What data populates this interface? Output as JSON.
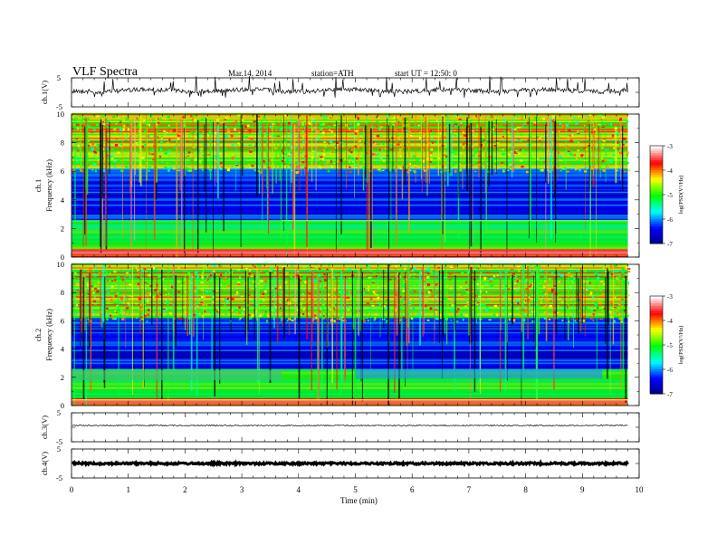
{
  "header": {
    "title": "VLF  Spectra",
    "date": "Mar.14, 2014",
    "station": "station=ATH",
    "start": "start  UT  =   12:50: 0"
  },
  "chart_data": [
    {
      "type": "line",
      "title": "",
      "ylabel": "ch.1(V)",
      "ylim": [
        -5,
        5
      ],
      "ytick_labels": [
        "5",
        "-5"
      ],
      "description_level": 0,
      "note": "noisy waveform near 0 V with spikes"
    },
    {
      "type": "heatmap",
      "ylabel_top": "ch.1",
      "ylabel": "Frequency  (kHz)",
      "ylim": [
        0,
        10
      ],
      "ytick_labels": [
        "0",
        "2",
        "4",
        "6",
        "8",
        "10"
      ],
      "colorbar": {
        "label": "log(PSD(V²/Hz)",
        "range": [
          -7,
          -3
        ],
        "tick_labels": [
          "-3",
          "-4",
          "-5",
          "-6",
          "-7"
        ]
      }
    },
    {
      "type": "heatmap",
      "ylabel_top": "ch.2",
      "ylabel": "Frequency  (kHz)",
      "ylim": [
        0,
        10
      ],
      "ytick_labels": [
        "0",
        "2",
        "4",
        "6",
        "8",
        "10"
      ],
      "colorbar": {
        "label": "log(PSD(V²/Hz)",
        "range": [
          -7,
          -3
        ],
        "tick_labels": [
          "-3",
          "-4",
          "-5",
          "-6",
          "-7"
        ]
      }
    },
    {
      "type": "line",
      "ylabel": "ch.3(V)",
      "ylim": [
        -5,
        5
      ],
      "ytick_labels": [
        "5",
        "-5"
      ]
    },
    {
      "type": "line",
      "ylabel": "ch.4(V)",
      "ylim": [
        -5,
        5
      ],
      "ytick_labels": [
        "5",
        "-5"
      ]
    }
  ],
  "xaxis": {
    "label": "Time  (min)",
    "xlim": [
      0,
      10
    ],
    "tick_labels": [
      "0",
      "1",
      "2",
      "3",
      "4",
      "5",
      "6",
      "7",
      "8",
      "9",
      "10"
    ],
    "data_end_min": 9.8
  },
  "colors": {
    "colormap": [
      "#000080",
      "#0000ff",
      "#00ffff",
      "#00ff00",
      "#ffff00",
      "#ff0000",
      "#ffffff"
    ]
  }
}
